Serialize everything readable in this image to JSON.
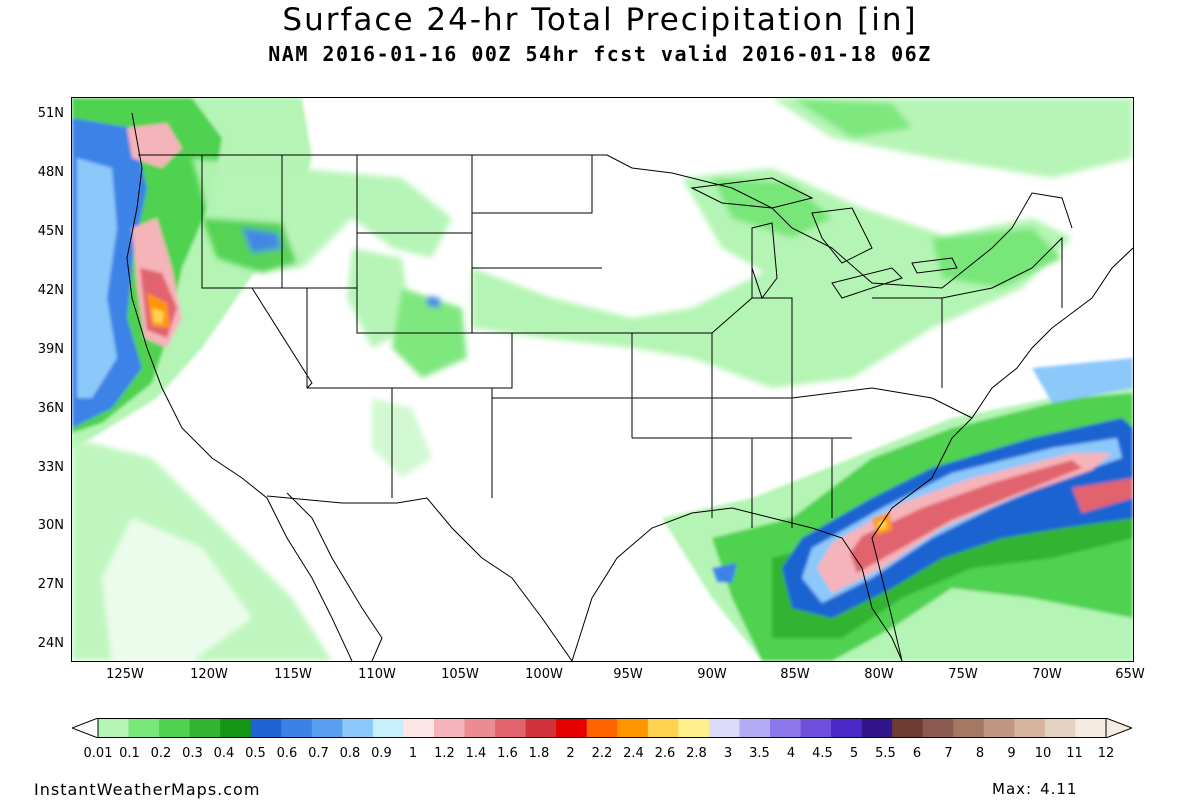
{
  "title": "Surface 24-hr Total Precipitation [in]",
  "subtitle": "NAM 2016-01-16 00Z 54hr fcst valid 2016-01-18 06Z",
  "lat_labels": [
    "51N",
    "48N",
    "45N",
    "42N",
    "39N",
    "36N",
    "33N",
    "30N",
    "27N",
    "24N"
  ],
  "lon_labels": [
    "125W",
    "120W",
    "115W",
    "110W",
    "105W",
    "100W",
    "95W",
    "90W",
    "85W",
    "80W",
    "75W",
    "70W",
    "65W"
  ],
  "legend": {
    "labels": [
      "0.01",
      "0.1",
      "0.2",
      "0.3",
      "0.4",
      "0.5",
      "0.6",
      "0.7",
      "0.8",
      "0.9",
      "1",
      "1.2",
      "1.4",
      "1.6",
      "1.8",
      "2",
      "2.2",
      "2.4",
      "2.6",
      "2.8",
      "3",
      "3.5",
      "4",
      "4.5",
      "5",
      "5.5",
      "6",
      "7",
      "8",
      "9",
      "10",
      "11",
      "12"
    ],
    "colors": [
      "#b4f4b4",
      "#78e678",
      "#50d250",
      "#32b432",
      "#149614",
      "#1e64d2",
      "#3c82e6",
      "#5aa0f0",
      "#8cc8fa",
      "#c8f0fc",
      "#fce6e6",
      "#f5b4b9",
      "#eb8c91",
      "#e1646e",
      "#d2323c",
      "#e60000",
      "#ff6400",
      "#ff9600",
      "#ffd250",
      "#fff08c",
      "#dcdcfa",
      "#b4aaf5",
      "#8c78eb",
      "#6e50dc",
      "#4b28c8",
      "#32148c",
      "#6e3c32",
      "#8c5a50",
      "#a57864",
      "#be9682",
      "#d7b4a0",
      "#e6d2c3",
      "#f5ebe1"
    ]
  },
  "footer": {
    "site": "InstantWeatherMaps.com",
    "max_label": "Max:",
    "max_value": "4.11"
  }
}
